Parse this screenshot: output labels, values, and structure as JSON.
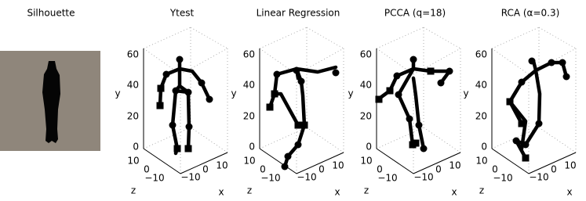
{
  "panels": [
    {
      "title": "Silhouette"
    },
    {
      "title": "Ytest",
      "y_label": "y",
      "z_label": "z",
      "x_label": "x",
      "y_ticks": [
        "60",
        "40",
        "20",
        "0"
      ],
      "z_ticks": [
        "10",
        "0",
        "−10"
      ],
      "x_ticks": [
        "−10",
        "0",
        "10"
      ]
    },
    {
      "title": "Linear Regression",
      "y_label": "y",
      "z_label": "z",
      "x_label": "x",
      "y_ticks": [
        "60",
        "40",
        "20",
        "0"
      ],
      "z_ticks": [
        "10",
        "0",
        "−10"
      ],
      "x_ticks": [
        "−10",
        "0",
        "10"
      ]
    },
    {
      "title": "PCCA (q=18)",
      "y_label": "y",
      "z_label": "z",
      "x_label": "x",
      "y_ticks": [
        "60",
        "40",
        "20",
        "0"
      ],
      "z_ticks": [
        "10",
        "0",
        "−10"
      ],
      "x_ticks": [
        "−10",
        "0",
        "10"
      ]
    },
    {
      "title": "RCA (α=0.3)",
      "y_label": "y",
      "z_label": "z",
      "x_label": "x",
      "y_ticks": [
        "60",
        "40",
        "20",
        "0"
      ],
      "z_ticks": [
        "10",
        "0",
        "−10"
      ],
      "x_ticks": [
        "−10",
        "0",
        "10"
      ]
    }
  ]
}
